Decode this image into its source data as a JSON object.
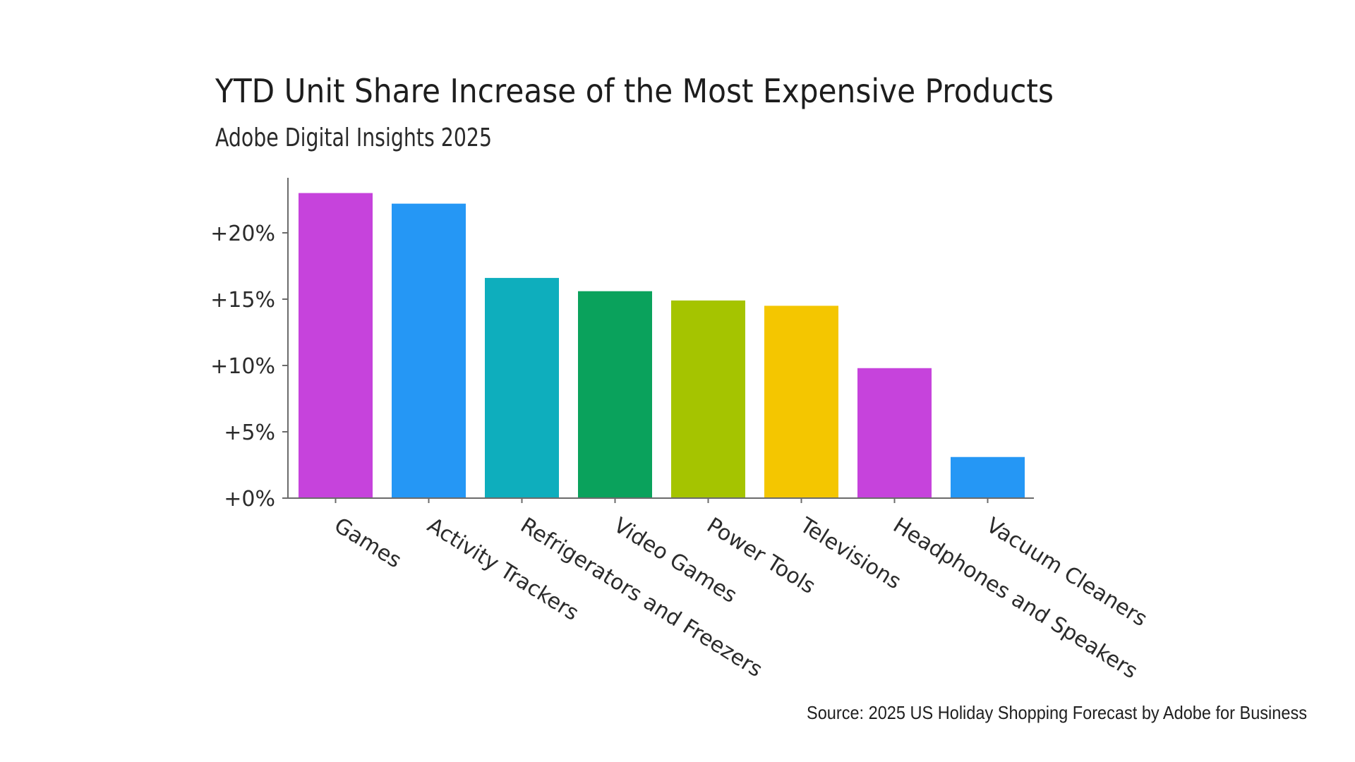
{
  "chart_data": {
    "type": "bar",
    "title": "YTD Unit Share Increase of the Most Expensive Products",
    "subtitle": "Adobe Digital Insights 2025",
    "xlabel": "",
    "ylabel": "",
    "categories": [
      "Games",
      "Activity Trackers",
      "Refrigerators and Freezers",
      "Video Games",
      "Power Tools",
      "Televisions",
      "Headphones and Speakers",
      "Vacuum Cleaners"
    ],
    "values": [
      23.0,
      22.2,
      16.6,
      15.6,
      14.9,
      14.5,
      9.8,
      3.1
    ],
    "value_unit": "%",
    "colors": [
      "#c643dc",
      "#2597f5",
      "#0eaebd",
      "#0aa25c",
      "#a5c400",
      "#f4c600",
      "#c643dc",
      "#2597f5"
    ],
    "ylim": [
      0,
      24.5
    ],
    "yticks": [
      0,
      5,
      10,
      15,
      20
    ],
    "ytick_labels": [
      "+0%",
      "+5%",
      "+10%",
      "+15%",
      "+20%"
    ],
    "grid": false,
    "legend": "none",
    "source": "Source: 2025 US Holiday Shopping Forecast by Adobe for Business"
  }
}
